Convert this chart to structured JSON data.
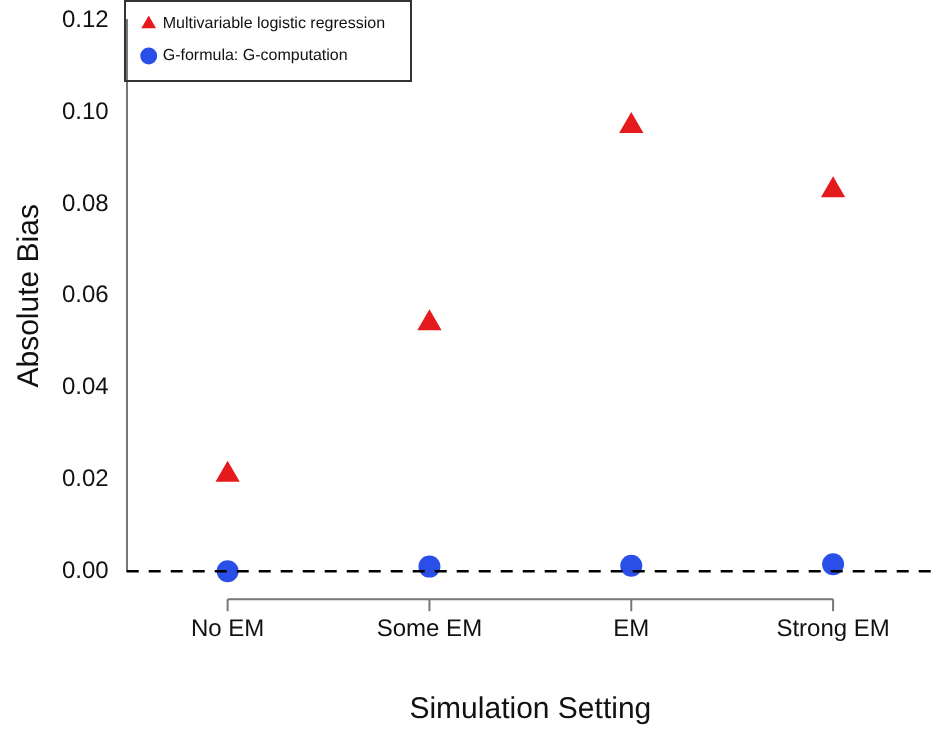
{
  "chart_data": {
    "type": "scatter",
    "xlabel": "Simulation Setting",
    "ylabel": "Absolute Bias",
    "categories": [
      "No EM",
      "Some EM",
      "EM",
      "Strong EM"
    ],
    "series": [
      {
        "name": "Multivariable logistic regression",
        "color": "#e41a1c",
        "marker": "triangle",
        "values": [
          0.021,
          0.054,
          0.097,
          0.083
        ]
      },
      {
        "name": "G-formula: G-computation",
        "color": "#2a4ee8",
        "marker": "circle",
        "values": [
          0.0,
          0.001,
          0.0012,
          0.0015
        ]
      }
    ],
    "ylim": [
      0,
      0.12
    ],
    "yticks": [
      {
        "value": 0,
        "label": "0.00"
      },
      {
        "value": 0.02,
        "label": "0.02"
      },
      {
        "value": 0.04,
        "label": "0.04"
      },
      {
        "value": 0.06,
        "label": "0.06"
      },
      {
        "value": 0.08,
        "label": "0.08"
      },
      {
        "value": 0.1,
        "label": "0.10"
      },
      {
        "value": 0.12,
        "label": "0.12"
      }
    ],
    "ref_lines": [
      {
        "axis": "y",
        "value": 0,
        "line_style": "dashed",
        "color": "#000000"
      }
    ],
    "legend": "top left",
    "grid": false
  }
}
